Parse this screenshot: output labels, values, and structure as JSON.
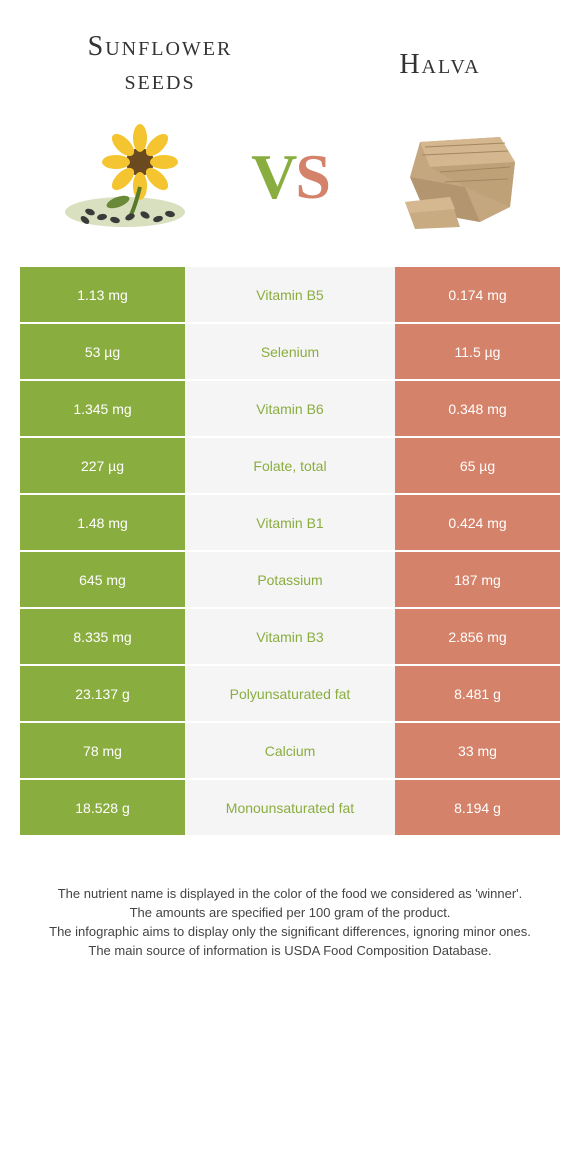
{
  "header": {
    "left_title": "Sunflower seeds",
    "right_title": "Halva",
    "vs_v": "V",
    "vs_s": "S"
  },
  "colors": {
    "left_win": "#8aad3f",
    "right_win": "#d4826a",
    "mid_bg": "#f5f5f5",
    "mid_text_left_win": "#8aad3f",
    "mid_text_right_win": "#d4826a",
    "row_gap": "#ffffff"
  },
  "rows": [
    {
      "left": "1.13 mg",
      "label": "Vitamin B5",
      "right": "0.174 mg",
      "winner": "left"
    },
    {
      "left": "53 µg",
      "label": "Selenium",
      "right": "11.5 µg",
      "winner": "left"
    },
    {
      "left": "1.345 mg",
      "label": "Vitamin B6",
      "right": "0.348 mg",
      "winner": "left"
    },
    {
      "left": "227 µg",
      "label": "Folate, total",
      "right": "65 µg",
      "winner": "left"
    },
    {
      "left": "1.48 mg",
      "label": "Vitamin B1",
      "right": "0.424 mg",
      "winner": "left"
    },
    {
      "left": "645 mg",
      "label": "Potassium",
      "right": "187 mg",
      "winner": "left"
    },
    {
      "left": "8.335 mg",
      "label": "Vitamin B3",
      "right": "2.856 mg",
      "winner": "left"
    },
    {
      "left": "23.137 g",
      "label": "Polyunsaturated fat",
      "right": "8.481 g",
      "winner": "left"
    },
    {
      "left": "78 mg",
      "label": "Calcium",
      "right": "33 mg",
      "winner": "left"
    },
    {
      "left": "18.528 g",
      "label": "Monounsaturated fat",
      "right": "8.194 g",
      "winner": "left"
    }
  ],
  "footer": {
    "line1": "The nutrient name is displayed in the color of the food we considered as 'winner'.",
    "line2": "The amounts are specified per 100 gram of the product.",
    "line3": "The infographic aims to display only the significant differences, ignoring minor ones.",
    "line4": "The main source of information is USDA Food Composition Database."
  }
}
